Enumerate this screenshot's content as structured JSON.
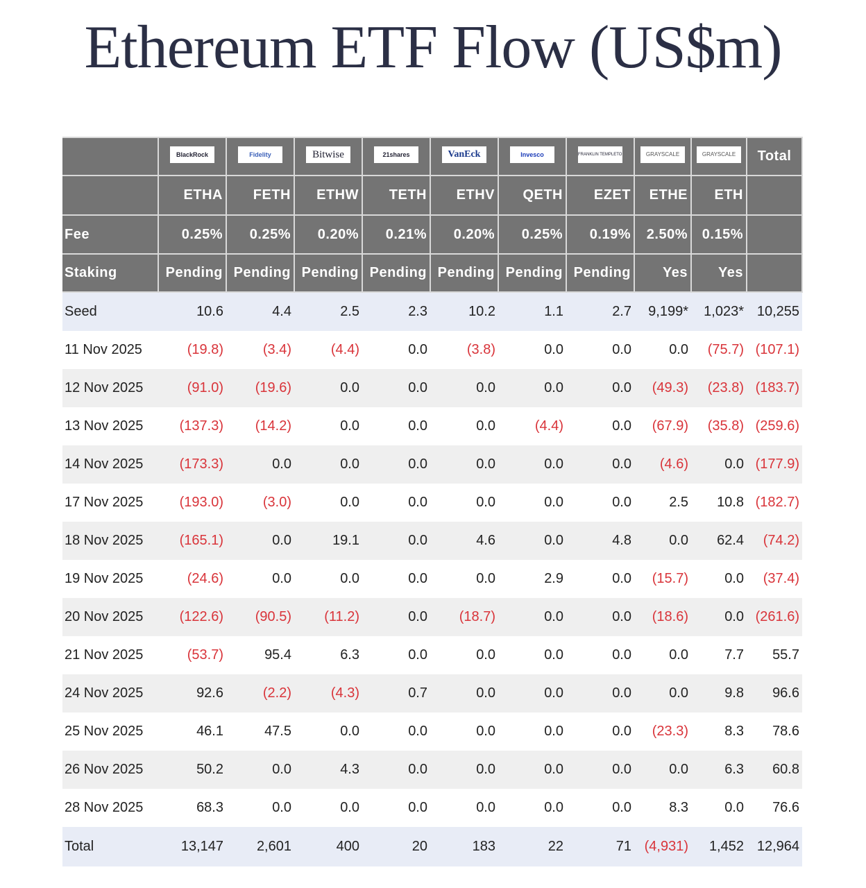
{
  "title": "Ethereum ETF Flow (US$m)",
  "issuers": [
    {
      "logo_text": "BlackRock",
      "cls": "ft2"
    },
    {
      "logo_text": "Fidelity",
      "cls": "fidelity"
    },
    {
      "logo_text": "Bitwise",
      "cls": "bitwise"
    },
    {
      "logo_text": "21shares",
      "cls": "ft2"
    },
    {
      "logo_text": "VanEck",
      "cls": "vaneck"
    },
    {
      "logo_text": "Invesco",
      "cls": "invesco"
    },
    {
      "logo_text": "FRANKLIN TEMPLETON",
      "cls": "ft"
    },
    {
      "logo_text": "GRAYSCALE",
      "cls": "gray"
    },
    {
      "logo_text": "GRAYSCALE",
      "cls": "gray"
    }
  ],
  "total_header": "Total",
  "tickers": [
    "ETHA",
    "FETH",
    "ETHW",
    "TETH",
    "ETHV",
    "QETH",
    "EZET",
    "ETHE",
    "ETH"
  ],
  "fee_label": "Fee",
  "fees": [
    "0.25%",
    "0.25%",
    "0.20%",
    "0.21%",
    "0.20%",
    "0.25%",
    "0.19%",
    "2.50%",
    "0.15%"
  ],
  "staking_label": "Staking",
  "staking": [
    "Pending",
    "Pending",
    "Pending",
    "Pending",
    "Pending",
    "Pending",
    "Pending",
    "Yes",
    "Yes"
  ],
  "seed": {
    "label": "Seed",
    "values": [
      "10.6",
      "4.4",
      "2.5",
      "2.3",
      "10.2",
      "1.1",
      "2.7",
      "9,199*",
      "1,023*",
      "10,255"
    ]
  },
  "rows": [
    {
      "date": "11 Nov 2025",
      "values": [
        "(19.8)",
        "(3.4)",
        "(4.4)",
        "0.0",
        "(3.8)",
        "0.0",
        "0.0",
        "0.0",
        "(75.7)",
        "(107.1)"
      ]
    },
    {
      "date": "12 Nov 2025",
      "values": [
        "(91.0)",
        "(19.6)",
        "0.0",
        "0.0",
        "0.0",
        "0.0",
        "0.0",
        "(49.3)",
        "(23.8)",
        "(183.7)"
      ]
    },
    {
      "date": "13 Nov 2025",
      "values": [
        "(137.3)",
        "(14.2)",
        "0.0",
        "0.0",
        "0.0",
        "(4.4)",
        "0.0",
        "(67.9)",
        "(35.8)",
        "(259.6)"
      ]
    },
    {
      "date": "14 Nov 2025",
      "values": [
        "(173.3)",
        "0.0",
        "0.0",
        "0.0",
        "0.0",
        "0.0",
        "0.0",
        "(4.6)",
        "0.0",
        "(177.9)"
      ]
    },
    {
      "date": "17 Nov 2025",
      "values": [
        "(193.0)",
        "(3.0)",
        "0.0",
        "0.0",
        "0.0",
        "0.0",
        "0.0",
        "2.5",
        "10.8",
        "(182.7)"
      ]
    },
    {
      "date": "18 Nov 2025",
      "values": [
        "(165.1)",
        "0.0",
        "19.1",
        "0.0",
        "4.6",
        "0.0",
        "4.8",
        "0.0",
        "62.4",
        "(74.2)"
      ]
    },
    {
      "date": "19 Nov 2025",
      "values": [
        "(24.6)",
        "0.0",
        "0.0",
        "0.0",
        "0.0",
        "2.9",
        "0.0",
        "(15.7)",
        "0.0",
        "(37.4)"
      ]
    },
    {
      "date": "20 Nov 2025",
      "values": [
        "(122.6)",
        "(90.5)",
        "(11.2)",
        "0.0",
        "(18.7)",
        "0.0",
        "0.0",
        "(18.6)",
        "0.0",
        "(261.6)"
      ]
    },
    {
      "date": "21 Nov 2025",
      "values": [
        "(53.7)",
        "95.4",
        "6.3",
        "0.0",
        "0.0",
        "0.0",
        "0.0",
        "0.0",
        "7.7",
        "55.7"
      ]
    },
    {
      "date": "24 Nov 2025",
      "values": [
        "92.6",
        "(2.2)",
        "(4.3)",
        "0.7",
        "0.0",
        "0.0",
        "0.0",
        "0.0",
        "9.8",
        "96.6"
      ]
    },
    {
      "date": "25 Nov 2025",
      "values": [
        "46.1",
        "47.5",
        "0.0",
        "0.0",
        "0.0",
        "0.0",
        "0.0",
        "(23.3)",
        "8.3",
        "78.6"
      ]
    },
    {
      "date": "26 Nov 2025",
      "values": [
        "50.2",
        "0.0",
        "4.3",
        "0.0",
        "0.0",
        "0.0",
        "0.0",
        "0.0",
        "6.3",
        "60.8"
      ]
    },
    {
      "date": "28 Nov 2025",
      "values": [
        "68.3",
        "0.0",
        "0.0",
        "0.0",
        "0.0",
        "0.0",
        "0.0",
        "8.3",
        "0.0",
        "76.6"
      ]
    }
  ],
  "total": {
    "label": "Total",
    "values": [
      "13,147",
      "2,601",
      "400",
      "20",
      "183",
      "22",
      "71",
      "(4,931)",
      "1,452",
      "12,964"
    ]
  },
  "colors": {
    "header_bg": "#747474",
    "negative": "#d9343a",
    "highlight_row": "#e8ecf6",
    "title": "#2b2f45"
  }
}
